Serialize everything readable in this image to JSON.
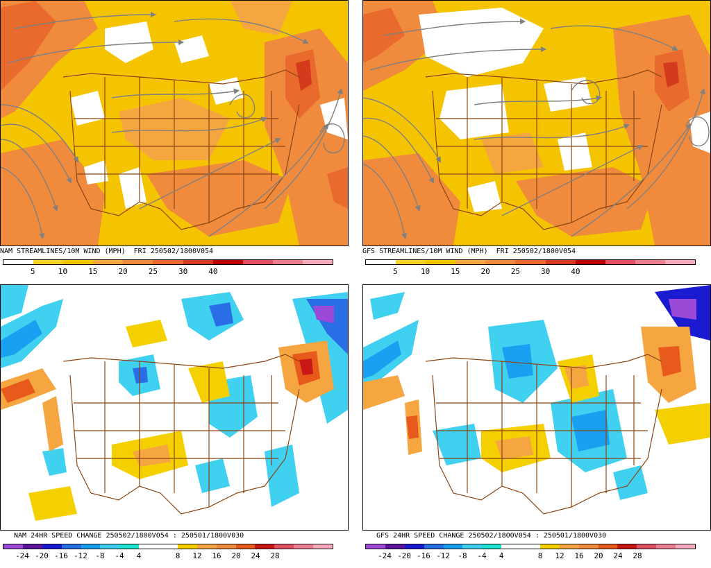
{
  "panels": [
    {
      "id": "nam-streamlines",
      "model": "NAM",
      "type": "streamlines",
      "title": "NAM STREAMLINES/10M WIND (MPH)  FRI 250502/1800V054",
      "colorbar": {
        "colors": [
          "#ffffff",
          "#f5d22a",
          "#f5c400",
          "#f5a640",
          "#f08a3c",
          "#e86a2c",
          "#d43a1c",
          "#b80000",
          "#e05060",
          "#ee7f90",
          "#f6aabb"
        ],
        "labels": [
          "5",
          "10",
          "15",
          "20",
          "25",
          "30",
          "40"
        ]
      }
    },
    {
      "id": "gfs-streamlines",
      "model": "GFS",
      "type": "streamlines",
      "title": "GFS STREAMLINES/10M WIND (MPH)  FRI 250502/1800V054",
      "colorbar": {
        "colors": [
          "#ffffff",
          "#f5d22a",
          "#f5c400",
          "#f5a640",
          "#f08a3c",
          "#e86a2c",
          "#d43a1c",
          "#b80000",
          "#e05060",
          "#ee7f90",
          "#f6aabb"
        ],
        "labels": [
          "5",
          "10",
          "15",
          "20",
          "25",
          "30",
          "40"
        ]
      }
    },
    {
      "id": "nam-speed-change",
      "model": "NAM",
      "type": "change",
      "title": "NAM 24HR SPEED CHANGE 250502/1800V054 : 250501/1800V030",
      "colorbar": {
        "colors": [
          "#9a4ad6",
          "#5a14a0",
          "#1a1ad0",
          "#2a6ee6",
          "#1aa0f0",
          "#40d0f0",
          "#20e0d0",
          "#ffffff",
          "#ffffff",
          "#f5d000",
          "#f5a640",
          "#f08a3c",
          "#e85a1c",
          "#c81818",
          "#e05060",
          "#ee7f90",
          "#f6aabb"
        ],
        "labels": [
          "-24",
          "-20",
          "-16",
          "-12",
          "-8",
          "-4",
          "4",
          "8",
          "12",
          "16",
          "20",
          "24",
          "28"
        ]
      }
    },
    {
      "id": "gfs-speed-change",
      "model": "GFS",
      "type": "change",
      "title": "GFS 24HR SPEED CHANGE 250502/1800V054 : 250501/1800V030",
      "colorbar": {
        "colors": [
          "#9a4ad6",
          "#5a14a0",
          "#1a1ad0",
          "#2a6ee6",
          "#1aa0f0",
          "#40d0f0",
          "#20e0d0",
          "#ffffff",
          "#ffffff",
          "#f5d000",
          "#f5a640",
          "#f08a3c",
          "#e85a1c",
          "#c81818",
          "#e05060",
          "#ee7f90",
          "#f6aabb"
        ],
        "labels": [
          "-24",
          "-20",
          "-16",
          "-12",
          "-8",
          "-4",
          "4",
          "8",
          "12",
          "16",
          "20",
          "24",
          "28"
        ]
      }
    }
  ]
}
